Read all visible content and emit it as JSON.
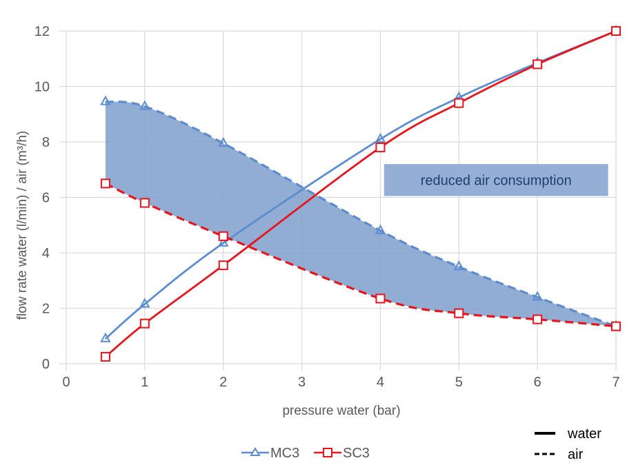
{
  "chart_data": {
    "type": "line",
    "title": "",
    "xlabel": "pressure water (bar)",
    "ylabel": "flow rate water (l/min) / air (m³/h)",
    "xlim": [
      0,
      7
    ],
    "ylim": [
      0,
      12
    ],
    "xticks": [
      0,
      1,
      2,
      3,
      4,
      5,
      6,
      7
    ],
    "yticks": [
      0,
      2,
      4,
      6,
      8,
      10,
      12
    ],
    "grid": true,
    "x": [
      0.5,
      1,
      2,
      4,
      5,
      6,
      7
    ],
    "series": [
      {
        "name": "MC3 water",
        "device": "MC3",
        "medium": "water",
        "line": "solid",
        "marker": "triangle",
        "color": "#5b8ccf",
        "values": [
          0.9,
          2.15,
          4.35,
          8.1,
          9.6,
          10.85,
          12.0
        ]
      },
      {
        "name": "SC3 water",
        "device": "SC3",
        "medium": "water",
        "line": "solid",
        "marker": "square",
        "color": "#e8141c",
        "values": [
          0.25,
          1.45,
          3.55,
          7.8,
          9.4,
          10.8,
          12.0
        ]
      },
      {
        "name": "MC3 air",
        "device": "MC3",
        "medium": "air",
        "line": "dashed",
        "marker": "triangle",
        "color": "#5b8ccf",
        "values": [
          9.45,
          9.28,
          7.95,
          4.8,
          3.5,
          2.4,
          1.35
        ]
      },
      {
        "name": "SC3 air",
        "device": "SC3",
        "medium": "air",
        "line": "dashed",
        "marker": "square",
        "color": "#e8141c",
        "values": [
          6.5,
          5.8,
          4.6,
          2.35,
          1.82,
          1.6,
          1.35
        ]
      }
    ],
    "shaded_region": {
      "between": [
        "MC3 air",
        "SC3 air"
      ],
      "color": "#7f9fcc"
    },
    "annotation": {
      "text": "reduced air consumption",
      "x_range": [
        4.1,
        6.9
      ],
      "y_range": [
        6.05,
        7.2
      ],
      "fill": "#8eaad3"
    },
    "legend": {
      "placement": "bottom-center",
      "entries": [
        {
          "label": "MC3",
          "color": "#5b8ccf",
          "marker": "triangle"
        },
        {
          "label": "SC3",
          "color": "#e8141c",
          "marker": "square"
        }
      ]
    },
    "style_legend": {
      "placement": "bottom-right",
      "entries": [
        {
          "label": "water",
          "line": "solid"
        },
        {
          "label": "air",
          "line": "dashed"
        }
      ]
    }
  }
}
